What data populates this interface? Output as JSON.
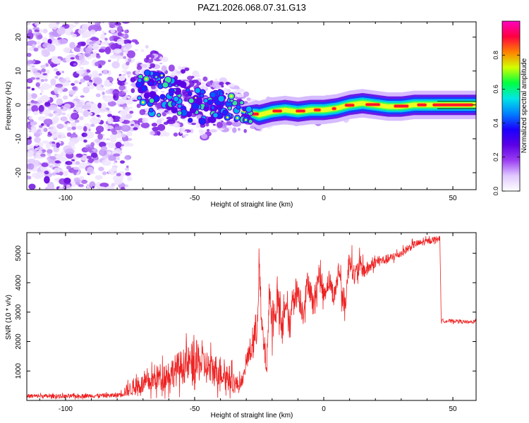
{
  "title": "PAZ1.2026.068.07.31.G13",
  "chart_data": [
    {
      "type": "heatmap",
      "name": "spectrogram",
      "xlabel": "Height of straight line (km)",
      "ylabel": "Frequency (Hz)",
      "xlim": [
        -115,
        59
      ],
      "ylim": [
        -25,
        24.5
      ],
      "xticks": [
        -100,
        -50,
        0,
        50
      ],
      "yticks": [
        20,
        10,
        0,
        -10,
        -20
      ],
      "colorbar": {
        "label": "Normalized spectral amplitude",
        "range": [
          0,
          1
        ],
        "ticks": [
          "0.0",
          "0.2",
          "0.4",
          "0.6",
          "0.8"
        ],
        "tick_values": [
          0,
          0.2,
          0.4,
          0.6,
          0.8
        ],
        "colors": [
          "#ffffff",
          "#e0c8ff",
          "#9a3cf2",
          "#5a00e6",
          "#1a00ff",
          "#0080ff",
          "#00e6e6",
          "#00ff40",
          "#d2ff00",
          "#ff8000",
          "#ff0040",
          "#ff00c0"
        ]
      },
      "ridge": {
        "description": "frequency of the main spectral line vs height",
        "x": [
          -75,
          -70,
          -60,
          -50,
          -45,
          -40,
          -35,
          -30,
          -25,
          -20,
          -15,
          -10,
          -5,
          0,
          5,
          10,
          15,
          20,
          25,
          30,
          35,
          40,
          45,
          50,
          59
        ],
        "y": [
          6,
          5,
          2,
          0,
          -1,
          0.5,
          -1,
          -2,
          -3,
          -2,
          -1.5,
          -2,
          -1.5,
          -1.5,
          -1,
          0,
          0.5,
          0,
          -0.5,
          -0.5,
          0,
          0,
          0,
          0,
          0
        ]
      }
    },
    {
      "type": "line",
      "name": "snr",
      "xlabel": "Height of straight line (km)",
      "ylabel": "SNR (10 * v/v)",
      "xlim": [
        -115,
        59
      ],
      "ylim": [
        0,
        5700
      ],
      "xticks": [
        -100,
        -50,
        0,
        50
      ],
      "yticks": [
        1000,
        2000,
        3000,
        4000,
        5000
      ],
      "series": [
        {
          "name": "SNR",
          "color": "#ee2222",
          "x": [
            -115,
            -100,
            -90,
            -80,
            -76,
            -72,
            -68,
            -64,
            -60,
            -56,
            -52,
            -50,
            -48,
            -44,
            -40,
            -36,
            -33,
            -31,
            -30,
            -28,
            -26,
            -25,
            -24,
            -22,
            -21,
            -20,
            -18,
            -16,
            -15,
            -13,
            -12,
            -10,
            -8,
            -6,
            -4,
            -2,
            0,
            2,
            4,
            6,
            8,
            10,
            12,
            14,
            16,
            20,
            25,
            30,
            35,
            40,
            44,
            45,
            45.5,
            48,
            52,
            56,
            59
          ],
          "y": [
            150,
            140,
            160,
            170,
            350,
            500,
            600,
            800,
            900,
            1100,
            1250,
            1200,
            1300,
            1050,
            1000,
            700,
            500,
            800,
            1300,
            1800,
            2400,
            4600,
            2400,
            1100,
            3900,
            2500,
            3500,
            2200,
            3400,
            2400,
            3600,
            3700,
            3000,
            4100,
            3200,
            4300,
            3600,
            4100,
            3500,
            4500,
            3000,
            4900,
            4200,
            4600,
            4400,
            4700,
            4800,
            5000,
            5300,
            5400,
            5500,
            5500,
            2700,
            2700,
            2700,
            2650,
            2700
          ],
          "noise_amplitude": [
            80,
            80,
            80,
            90,
            250,
            350,
            400,
            500,
            550,
            650,
            700,
            1000,
            700,
            650,
            600,
            500,
            300,
            200,
            300,
            600,
            800,
            600,
            700,
            400,
            600,
            700,
            700,
            600,
            600,
            500,
            600,
            600,
            500,
            500,
            500,
            500,
            400,
            400,
            400,
            500,
            500,
            500,
            400,
            400,
            300,
            200,
            180,
            150,
            150,
            120,
            100,
            100,
            80,
            60,
            60,
            60,
            60
          ]
        }
      ]
    }
  ]
}
